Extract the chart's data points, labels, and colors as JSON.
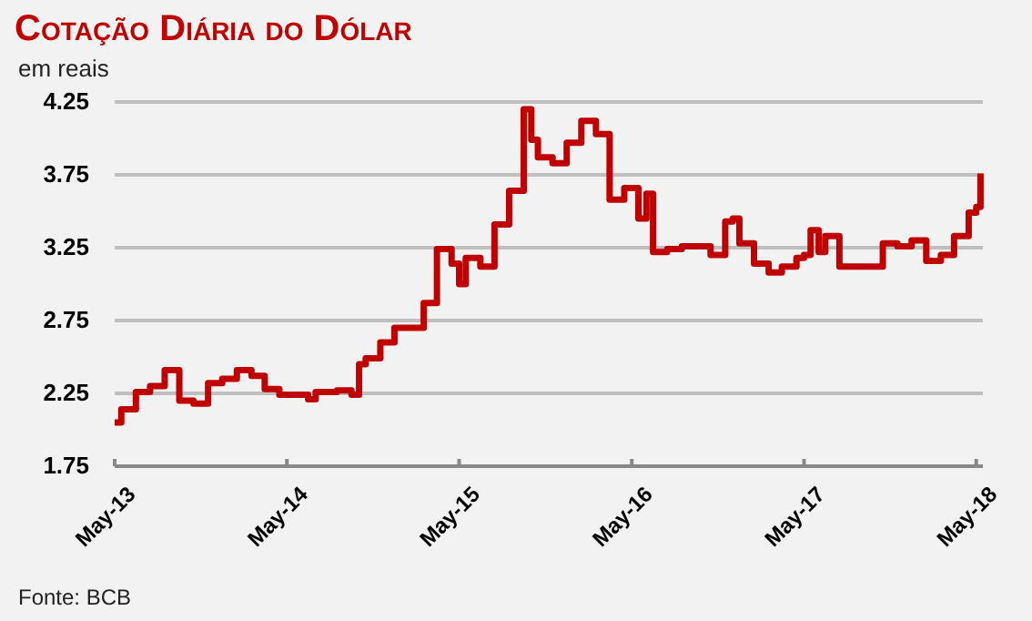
{
  "chart_data": {
    "type": "step",
    "title": "Cotação Diária do Dólar",
    "subtitle": "em reais",
    "annotations": [
      "Fonte: BCB"
    ],
    "x": [
      "2013-05-01",
      "2013-05-15",
      "2013-06-15",
      "2013-07-15",
      "2013-08-15",
      "2013-09-15",
      "2013-10-15",
      "2013-11-15",
      "2013-12-15",
      "2014-01-15",
      "2014-02-15",
      "2014-03-15",
      "2014-04-15",
      "2014-06-15",
      "2014-07-01",
      "2014-08-15",
      "2014-09-15",
      "2014-10-01",
      "2014-10-15",
      "2014-11-15",
      "2014-12-15",
      "2015-02-15",
      "2015-03-15",
      "2015-04-15",
      "2015-05-01",
      "2015-05-15",
      "2015-06-15",
      "2015-07-15",
      "2015-08-15",
      "2015-09-15",
      "2015-10-01",
      "2015-10-15",
      "2015-11-15",
      "2015-12-15",
      "2016-01-15",
      "2016-02-15",
      "2016-03-15",
      "2016-04-15",
      "2016-05-15",
      "2016-06-01",
      "2016-06-15",
      "2016-07-15",
      "2016-08-15",
      "2016-10-15",
      "2016-11-15",
      "2016-12-01",
      "2016-12-15",
      "2017-01-15",
      "2017-02-15",
      "2017-03-15",
      "2017-04-15",
      "2017-05-01",
      "2017-05-15",
      "2017-06-01",
      "2017-06-15",
      "2017-07-15",
      "2017-10-15",
      "2017-11-15",
      "2017-12-15",
      "2018-01-15",
      "2018-02-15",
      "2018-03-15",
      "2018-04-15",
      "2018-05-01",
      "2018-05-10"
    ],
    "series": [
      {
        "color": "#c00000",
        "values": [
          2.05,
          2.14,
          2.26,
          2.3,
          2.41,
          2.2,
          2.18,
          2.32,
          2.35,
          2.41,
          2.37,
          2.28,
          2.24,
          2.21,
          2.26,
          2.27,
          2.24,
          2.45,
          2.49,
          2.6,
          2.7,
          2.87,
          3.24,
          3.14,
          3.0,
          3.18,
          3.12,
          3.41,
          3.64,
          4.2,
          3.99,
          3.87,
          3.83,
          3.97,
          4.12,
          4.03,
          3.58,
          3.66,
          3.45,
          3.62,
          3.22,
          3.24,
          3.26,
          3.2,
          3.43,
          3.45,
          3.28,
          3.14,
          3.08,
          3.12,
          3.18,
          3.2,
          3.37,
          3.22,
          3.33,
          3.12,
          3.28,
          3.26,
          3.3,
          3.16,
          3.2,
          3.33,
          3.49,
          3.53,
          3.76
        ]
      }
    ],
    "xlim": [
      "2013-05-01",
      "2018-05-15"
    ],
    "xticks": [
      {
        "value": "2013-05-01",
        "label": "May-13"
      },
      {
        "value": "2014-05-01",
        "label": "May-14"
      },
      {
        "value": "2015-05-01",
        "label": "May-15"
      },
      {
        "value": "2016-05-01",
        "label": "May-16"
      },
      {
        "value": "2017-05-01",
        "label": "May-17"
      },
      {
        "value": "2018-05-01",
        "label": "May-18"
      }
    ],
    "ylim": [
      1.75,
      4.25
    ],
    "yticks": [
      1.75,
      2.25,
      2.75,
      3.25,
      3.75,
      4.25
    ],
    "grid": "y",
    "marker": "none",
    "line_style": "solid"
  }
}
